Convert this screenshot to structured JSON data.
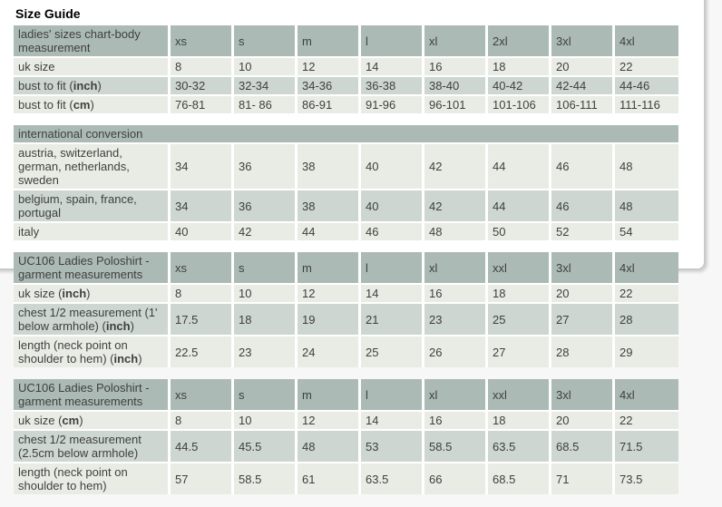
{
  "page": {
    "title": "Size Guide"
  },
  "colors": {
    "page_bg": "#f7f7f7",
    "header_bg": "#abbab4",
    "row_mid": "#cdd6d1",
    "row_light": "#e9ece4",
    "cell_text": "#3f3f3f",
    "title_color": "#000000",
    "panel_border": "#c9c9c9"
  },
  "tables": [
    {
      "name": "ladies-sizes-body-measurement",
      "header": {
        "label": "ladies' sizes chart-body measurement",
        "columns": [
          "xs",
          "s",
          "m",
          "l",
          "xl",
          "2xl",
          "3xl",
          "4xl"
        ]
      },
      "rows": [
        {
          "label": [
            {
              "t": "uk size"
            }
          ],
          "values": [
            "8",
            "10",
            "12",
            "14",
            "16",
            "18",
            "20",
            "22"
          ]
        },
        {
          "label": [
            {
              "t": "bust to fit ("
            },
            {
              "t": "inch",
              "b": true
            },
            {
              "t": ")"
            }
          ],
          "values": [
            "30-32",
            "32-34",
            "34-36",
            "36-38",
            "38-40",
            "40-42",
            "42-44",
            "44-46"
          ]
        },
        {
          "label": [
            {
              "t": "bust to fit ("
            },
            {
              "t": "cm",
              "b": true
            },
            {
              "t": ")"
            }
          ],
          "values": [
            "76-81",
            "81- 86",
            "86-91",
            "91-96",
            "96-101",
            "101-106",
            "106-111",
            "111-116"
          ]
        }
      ]
    },
    {
      "name": "international-conversion",
      "full_header": "international conversion",
      "rows": [
        {
          "label": [
            {
              "t": "austria, switzerland, german, netherlands, sweden"
            }
          ],
          "values": [
            "34",
            "36",
            "38",
            "40",
            "42",
            "44",
            "46",
            "48"
          ]
        },
        {
          "label": [
            {
              "t": "belgium, spain, france, portugal"
            }
          ],
          "values": [
            "34",
            "36",
            "38",
            "40",
            "42",
            "44",
            "46",
            "48"
          ]
        },
        {
          "label": [
            {
              "t": "italy"
            }
          ],
          "values": [
            "40",
            "42",
            "44",
            "46",
            "48",
            "50",
            "52",
            "54"
          ]
        }
      ]
    },
    {
      "name": "uc106-garment-measurements-inch",
      "header": {
        "label": "UC106 Ladies Poloshirt - garment measurements",
        "columns": [
          "xs",
          "s",
          "m",
          "l",
          "xl",
          "xxl",
          "3xl",
          "4xl"
        ]
      },
      "rows": [
        {
          "label": [
            {
              "t": "uk size ("
            },
            {
              "t": "inch",
              "b": true
            },
            {
              "t": ")"
            }
          ],
          "values": [
            "8",
            "10",
            "12",
            "14",
            "16",
            "18",
            "20",
            "22"
          ]
        },
        {
          "label": [
            {
              "t": "chest 1/2 measurement (1' below armhole) ("
            },
            {
              "t": "inch",
              "b": true
            },
            {
              "t": ")"
            }
          ],
          "values": [
            "17.5",
            "18",
            "19",
            "21",
            "23",
            "25",
            "27",
            "28"
          ]
        },
        {
          "label": [
            {
              "t": "length (neck point on shoulder to hem) ("
            },
            {
              "t": "inch",
              "b": true
            },
            {
              "t": ")"
            }
          ],
          "values": [
            "22.5",
            "23",
            "24",
            "25",
            "26",
            "27",
            "28",
            "29"
          ]
        }
      ]
    },
    {
      "name": "uc106-garment-measurements-cm",
      "header": {
        "label": "UC106 Ladies Poloshirt - garment measurements",
        "columns": [
          "xs",
          "s",
          "m",
          "l",
          "xl",
          "xxl",
          "3xl",
          "4xl"
        ]
      },
      "rows": [
        {
          "label": [
            {
              "t": "uk size ("
            },
            {
              "t": "cm",
              "b": true
            },
            {
              "t": ")"
            }
          ],
          "values": [
            "8",
            "10",
            "12",
            "14",
            "16",
            "18",
            "20",
            "22"
          ]
        },
        {
          "label": [
            {
              "t": "chest 1/2 measurement (2.5cm below armhole)"
            }
          ],
          "values": [
            "44.5",
            "45.5",
            "48",
            "53",
            "58.5",
            "63.5",
            "68.5",
            "71.5"
          ]
        },
        {
          "label": [
            {
              "t": "length (neck point on shoulder to hem)"
            }
          ],
          "values": [
            "57",
            "58.5",
            "61",
            "63.5",
            "66",
            "68.5",
            "71",
            "73.5"
          ]
        }
      ]
    }
  ]
}
